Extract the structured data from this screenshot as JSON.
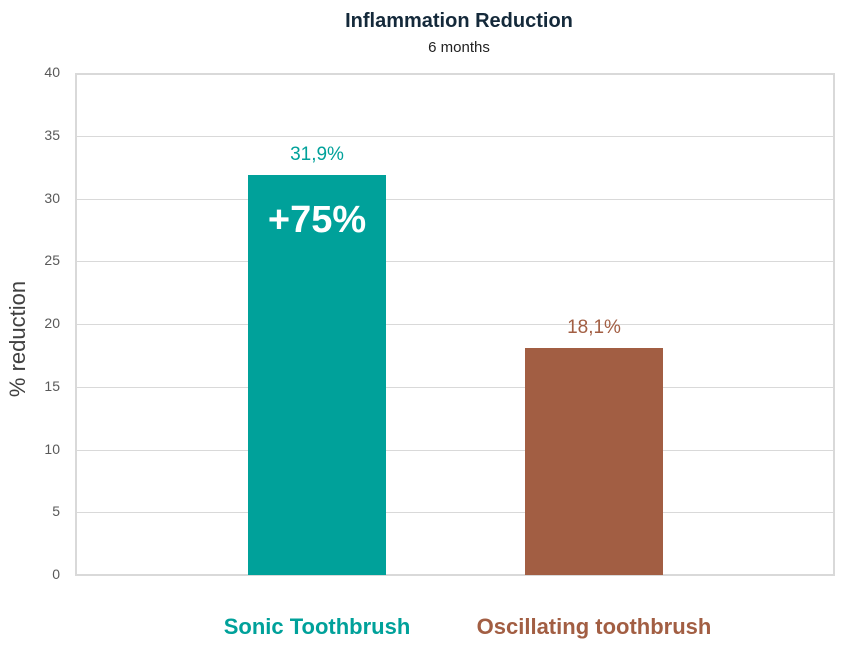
{
  "chart_data": {
    "type": "bar",
    "title": "Inflammation Reduction",
    "subtitle": "6 months",
    "xlabel": "",
    "ylabel": "% reduction",
    "ylim": [
      0,
      40
    ],
    "yticks": [
      "0",
      "5",
      "10",
      "15",
      "20",
      "25",
      "30",
      "35",
      "40"
    ],
    "grid": true,
    "categories": [
      "Sonic Toothbrush",
      "Oscillating toothbrush"
    ],
    "values": [
      31.9,
      18.1
    ],
    "data_labels": [
      "31,9%",
      "18,1%"
    ],
    "colors": [
      "#00A19A",
      "#A25E43"
    ],
    "annotations": [
      {
        "text": "+75%",
        "category": "Sonic Toothbrush",
        "position": "inside-top"
      }
    ]
  },
  "colors": {
    "sonic": "#00A19A",
    "oscillating": "#A25E43",
    "title": "#14293a",
    "grid": "#d9d9d9"
  }
}
